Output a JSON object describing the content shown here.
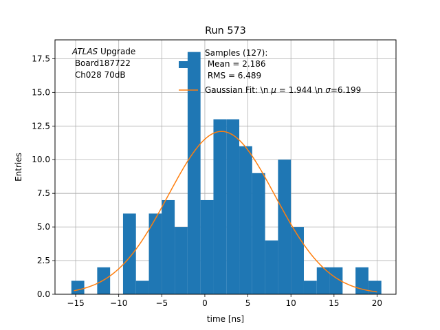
{
  "chart_data": {
    "type": "bar",
    "title": "Run 573",
    "xlabel": "time [ns]",
    "ylabel": "Entries",
    "xlim": [
      -17.4,
      22.2
    ],
    "ylim": [
      0,
      18.9
    ],
    "xticks": [
      -15,
      -10,
      -5,
      0,
      5,
      10,
      15,
      20
    ],
    "yticks": [
      0.0,
      2.5,
      5.0,
      7.5,
      10.0,
      12.5,
      15.0,
      17.5
    ],
    "grid": true,
    "bin_edges": [
      -15.5,
      -14.0,
      -12.5,
      -11.0,
      -9.5,
      -8.0,
      -6.5,
      -5.0,
      -3.5,
      -2.0,
      -0.5,
      1.0,
      2.5,
      4.0,
      5.5,
      7.0,
      8.5,
      10.0,
      11.5,
      13.0,
      14.5,
      16.0,
      17.5,
      19.0,
      20.5
    ],
    "counts": [
      1,
      0,
      2,
      0,
      6,
      1,
      6,
      7,
      5,
      18,
      7,
      13,
      13,
      11,
      9,
      4,
      10,
      5,
      1,
      2,
      2,
      0,
      2,
      1
    ],
    "series": [
      {
        "name": "Samples (127):\n Mean = 2.186\n RMS = 6.489",
        "kind": "histogram",
        "color": "#1f77b4"
      },
      {
        "name": "Gaussian Fit: \\n $\\mu$ = 1.944 \\n $\\sigma$=6.199",
        "kind": "line",
        "color": "#ff7f0e",
        "mu": 1.944,
        "sigma": 6.199,
        "amplitude": 12.1,
        "x_range": [
          -15.2,
          20.0
        ]
      }
    ],
    "annotation": {
      "lines": [
        "ATLAS Upgrade",
        " Board187722",
        " Ch028 70dB"
      ],
      "italic_word": "ATLAS"
    },
    "legend": {
      "position": "top-right",
      "hist_lines": [
        "Samples (127):",
        " Mean = 2.186",
        " RMS = 6.489"
      ],
      "fit_pre": "Gaussian Fit: \\n ",
      "fit_mid": " = 1.944 \\n ",
      "fit_post": "=6.199",
      "mu_symbol": "μ",
      "sigma_symbol": "σ"
    }
  }
}
